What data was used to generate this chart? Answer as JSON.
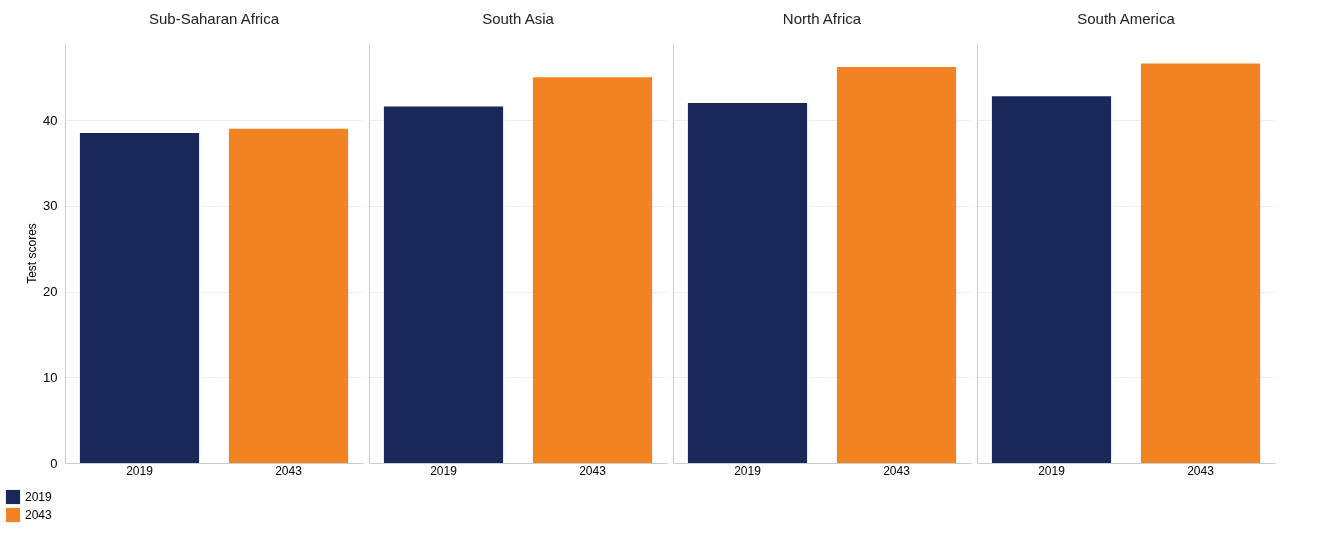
{
  "chart_data": {
    "type": "bar",
    "ylabel": "Test scores",
    "categories": [
      "Sub-Saharan Africa",
      "South Asia",
      "North Africa",
      "South America"
    ],
    "series": [
      {
        "name": "2019",
        "color": "#1a2859",
        "values": [
          38.5,
          41.6,
          42.0,
          42.8
        ]
      },
      {
        "name": "2043",
        "color": "#f28322",
        "values": [
          39.0,
          45.0,
          46.2,
          46.6
        ]
      }
    ],
    "ylim": [
      0,
      49
    ],
    "yticks": [
      0,
      10,
      20,
      30,
      40
    ],
    "grid": "y",
    "legend": "bottom left"
  }
}
